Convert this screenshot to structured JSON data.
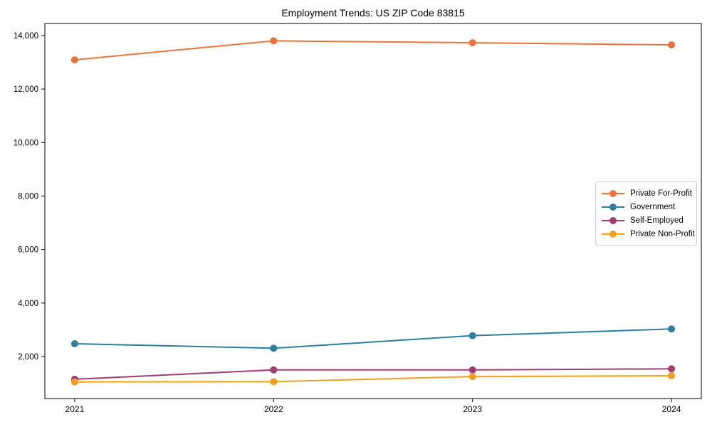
{
  "chart_data": {
    "type": "line",
    "title": "Employment Trends: US ZIP Code 83815",
    "x": [
      2021,
      2022,
      2023,
      2024
    ],
    "x_labels": [
      "2021",
      "2022",
      "2023",
      "2024"
    ],
    "series": [
      {
        "name": "Private For-Profit",
        "color": "#e8743b",
        "values": [
          13090,
          13800,
          13730,
          13650
        ]
      },
      {
        "name": "Government",
        "color": "#2e7f9e",
        "values": [
          2480,
          2310,
          2780,
          3030
        ]
      },
      {
        "name": "Self-Employed",
        "color": "#a23b72",
        "values": [
          1150,
          1500,
          1500,
          1540
        ]
      },
      {
        "name": "Private Non-Profit",
        "color": "#f0a01e",
        "values": [
          1050,
          1060,
          1250,
          1280
        ]
      }
    ],
    "xlabel": "",
    "ylabel": "",
    "ylim": [
      430,
      14450
    ],
    "xlim_margin": 0.15,
    "yticks": [
      2000,
      4000,
      6000,
      8000,
      10000,
      12000,
      14000
    ],
    "grid": false,
    "legend_position": "center-right",
    "marker": "circle",
    "marker_radius": 5,
    "line_width": 2,
    "background": "#ffffff",
    "axis_color": "#000000",
    "tick_label_color": "#000000"
  }
}
